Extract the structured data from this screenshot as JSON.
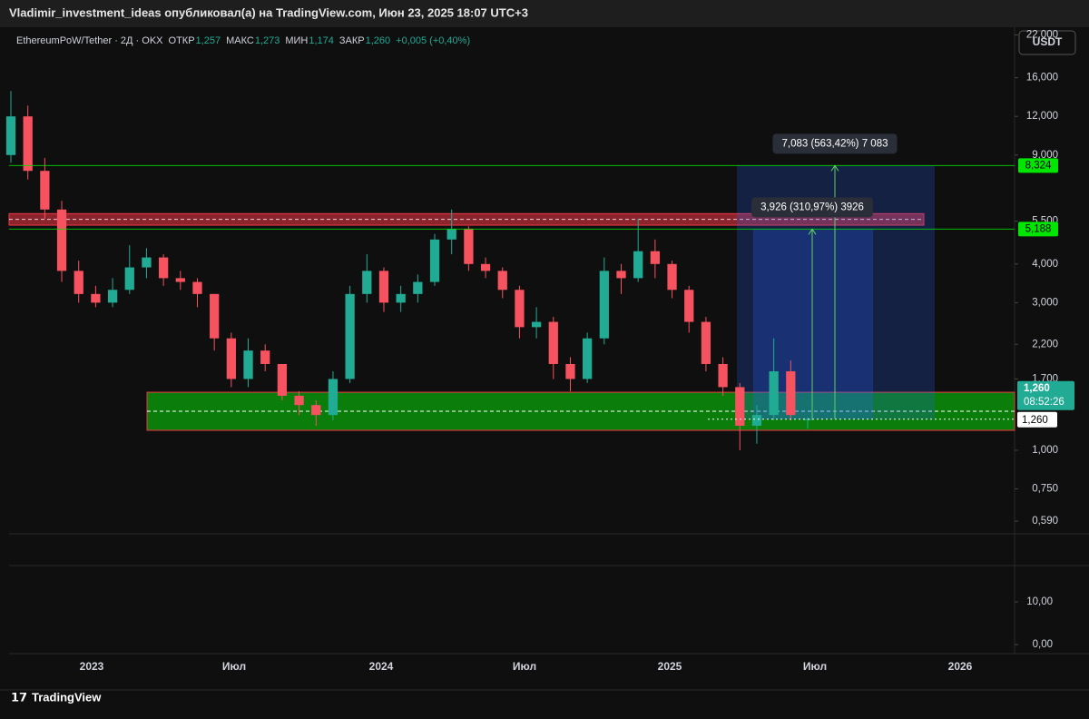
{
  "header": {
    "publisher": "Vladimir_investment_ideas опубликовал(а) на TradingView.com, Июн 23, 2025 18:07 UTC+3"
  },
  "chart_data": {
    "type": "candlestick",
    "legend": {
      "symbol": "EthereumPoW/Tether · 2Д · OKX",
      "open_label": "ОТКР",
      "open": "1,257",
      "high_label": "МАКС",
      "high": "1,273",
      "low_label": "МИН",
      "low": "1,174",
      "close_label": "ЗАКР",
      "close": "1,260",
      "change": "+0,005 (+0,40%)"
    },
    "currency_button": "USDT",
    "up_color": "#22ab94",
    "down_color": "#f7525f",
    "open": [
      9,
      12,
      8,
      6,
      3.8,
      3.2,
      3.0,
      3.3,
      3.9,
      4.2,
      3.6,
      3.5,
      3.2,
      2.3,
      1.7,
      2.1,
      1.9,
      1.5,
      1.4,
      1.3,
      1.7,
      3.2,
      3.8,
      3.0,
      3.2,
      3.5,
      4.8,
      5.2,
      4.0,
      3.8,
      3.3,
      2.5,
      2.6,
      1.9,
      1.7,
      2.3,
      3.8,
      3.6,
      4.4,
      4.0,
      3.3,
      2.6,
      1.9,
      1.6,
      1.2,
      1.3,
      1.8,
      1.257
    ],
    "high": [
      14.5,
      13,
      8.8,
      6.4,
      4.1,
      3.4,
      3.6,
      4.6,
      4.5,
      4.3,
      3.8,
      3.6,
      3.2,
      2.4,
      2.3,
      2.2,
      1.9,
      1.55,
      1.45,
      1.8,
      3.4,
      4.3,
      3.9,
      3.4,
      3.7,
      5.0,
      6.0,
      5.3,
      4.2,
      3.9,
      3.4,
      2.9,
      2.7,
      2.0,
      2.4,
      4.2,
      4.0,
      5.6,
      4.8,
      4.1,
      3.4,
      2.7,
      2.0,
      1.65,
      1.4,
      2.3,
      1.95,
      1.273
    ],
    "low": [
      8.5,
      7.5,
      5.6,
      3.5,
      3.0,
      2.9,
      2.9,
      3.2,
      3.6,
      3.4,
      3.3,
      2.9,
      2.1,
      1.6,
      1.6,
      1.8,
      1.45,
      1.3,
      1.2,
      1.25,
      1.65,
      3.0,
      2.8,
      2.8,
      3.0,
      3.4,
      4.3,
      3.8,
      3.6,
      3.1,
      2.3,
      2.3,
      1.7,
      1.55,
      1.65,
      2.2,
      3.2,
      3.5,
      3.6,
      3.1,
      2.4,
      1.8,
      1.5,
      1.0,
      1.05,
      1.25,
      1.25,
      1.174
    ],
    "close": [
      12,
      8,
      6,
      3.8,
      3.2,
      3.0,
      3.3,
      3.9,
      4.2,
      3.6,
      3.5,
      3.2,
      2.3,
      1.7,
      2.1,
      1.9,
      1.5,
      1.4,
      1.3,
      1.7,
      3.2,
      3.8,
      3.0,
      3.2,
      3.5,
      4.8,
      5.2,
      4.0,
      3.8,
      3.3,
      2.5,
      2.6,
      1.9,
      1.7,
      2.3,
      3.8,
      3.6,
      4.4,
      4.0,
      3.3,
      2.6,
      1.9,
      1.6,
      1.2,
      1.3,
      1.8,
      1.3,
      1.26
    ],
    "log_scale": true,
    "ylim": [
      0.537,
      23.3
    ],
    "yticks": [
      {
        "value": 22,
        "label": "22,000"
      },
      {
        "value": 16,
        "label": "16,000"
      },
      {
        "value": 12,
        "label": "12,000"
      },
      {
        "value": 9,
        "label": "9,000"
      },
      {
        "value": 5.5,
        "label": "5,500"
      },
      {
        "value": 4,
        "label": "4,000"
      },
      {
        "value": 3,
        "label": "3,000"
      },
      {
        "value": 2.2,
        "label": "2,200"
      },
      {
        "value": 1.7,
        "label": "1,700"
      },
      {
        "value": 1,
        "label": "1,000"
      },
      {
        "value": 0.75,
        "label": "0,750"
      },
      {
        "value": 0.59,
        "label": "0,590"
      }
    ],
    "xticks": [
      "2023",
      "Июл",
      "2024",
      "Июл",
      "2025",
      "Июл",
      "2026"
    ],
    "levels": [
      {
        "value": 8.324,
        "label": "8,324",
        "color": "#00e600"
      },
      {
        "value": 5.188,
        "label": "5,188",
        "color": "#00e600"
      }
    ],
    "resistance_zone": {
      "low": 5.34,
      "high": 5.82,
      "color": "#f23645"
    },
    "support_zone": {
      "low": 1.16,
      "high": 1.54,
      "mid": 1.337,
      "color": "#0b8a0b"
    },
    "last_price": {
      "value": 1.26,
      "label": "1,260",
      "countdown": "08:52:26",
      "color": "#22ab94"
    },
    "annotations": [
      {
        "text": "7,083 (563,42%) 7 083",
        "from": 1.26,
        "to": 8.324
      },
      {
        "text": "3,926 (310,97%) 3926",
        "from": 1.26,
        "to": 5.188
      }
    ],
    "indicator": {
      "ylim": [
        -1.7,
        18.5
      ],
      "yticks": [
        {
          "value": 10,
          "label": "10,00"
        },
        {
          "value": 0,
          "label": "0,00"
        }
      ]
    }
  },
  "footer": {
    "brand": "TradingView"
  }
}
